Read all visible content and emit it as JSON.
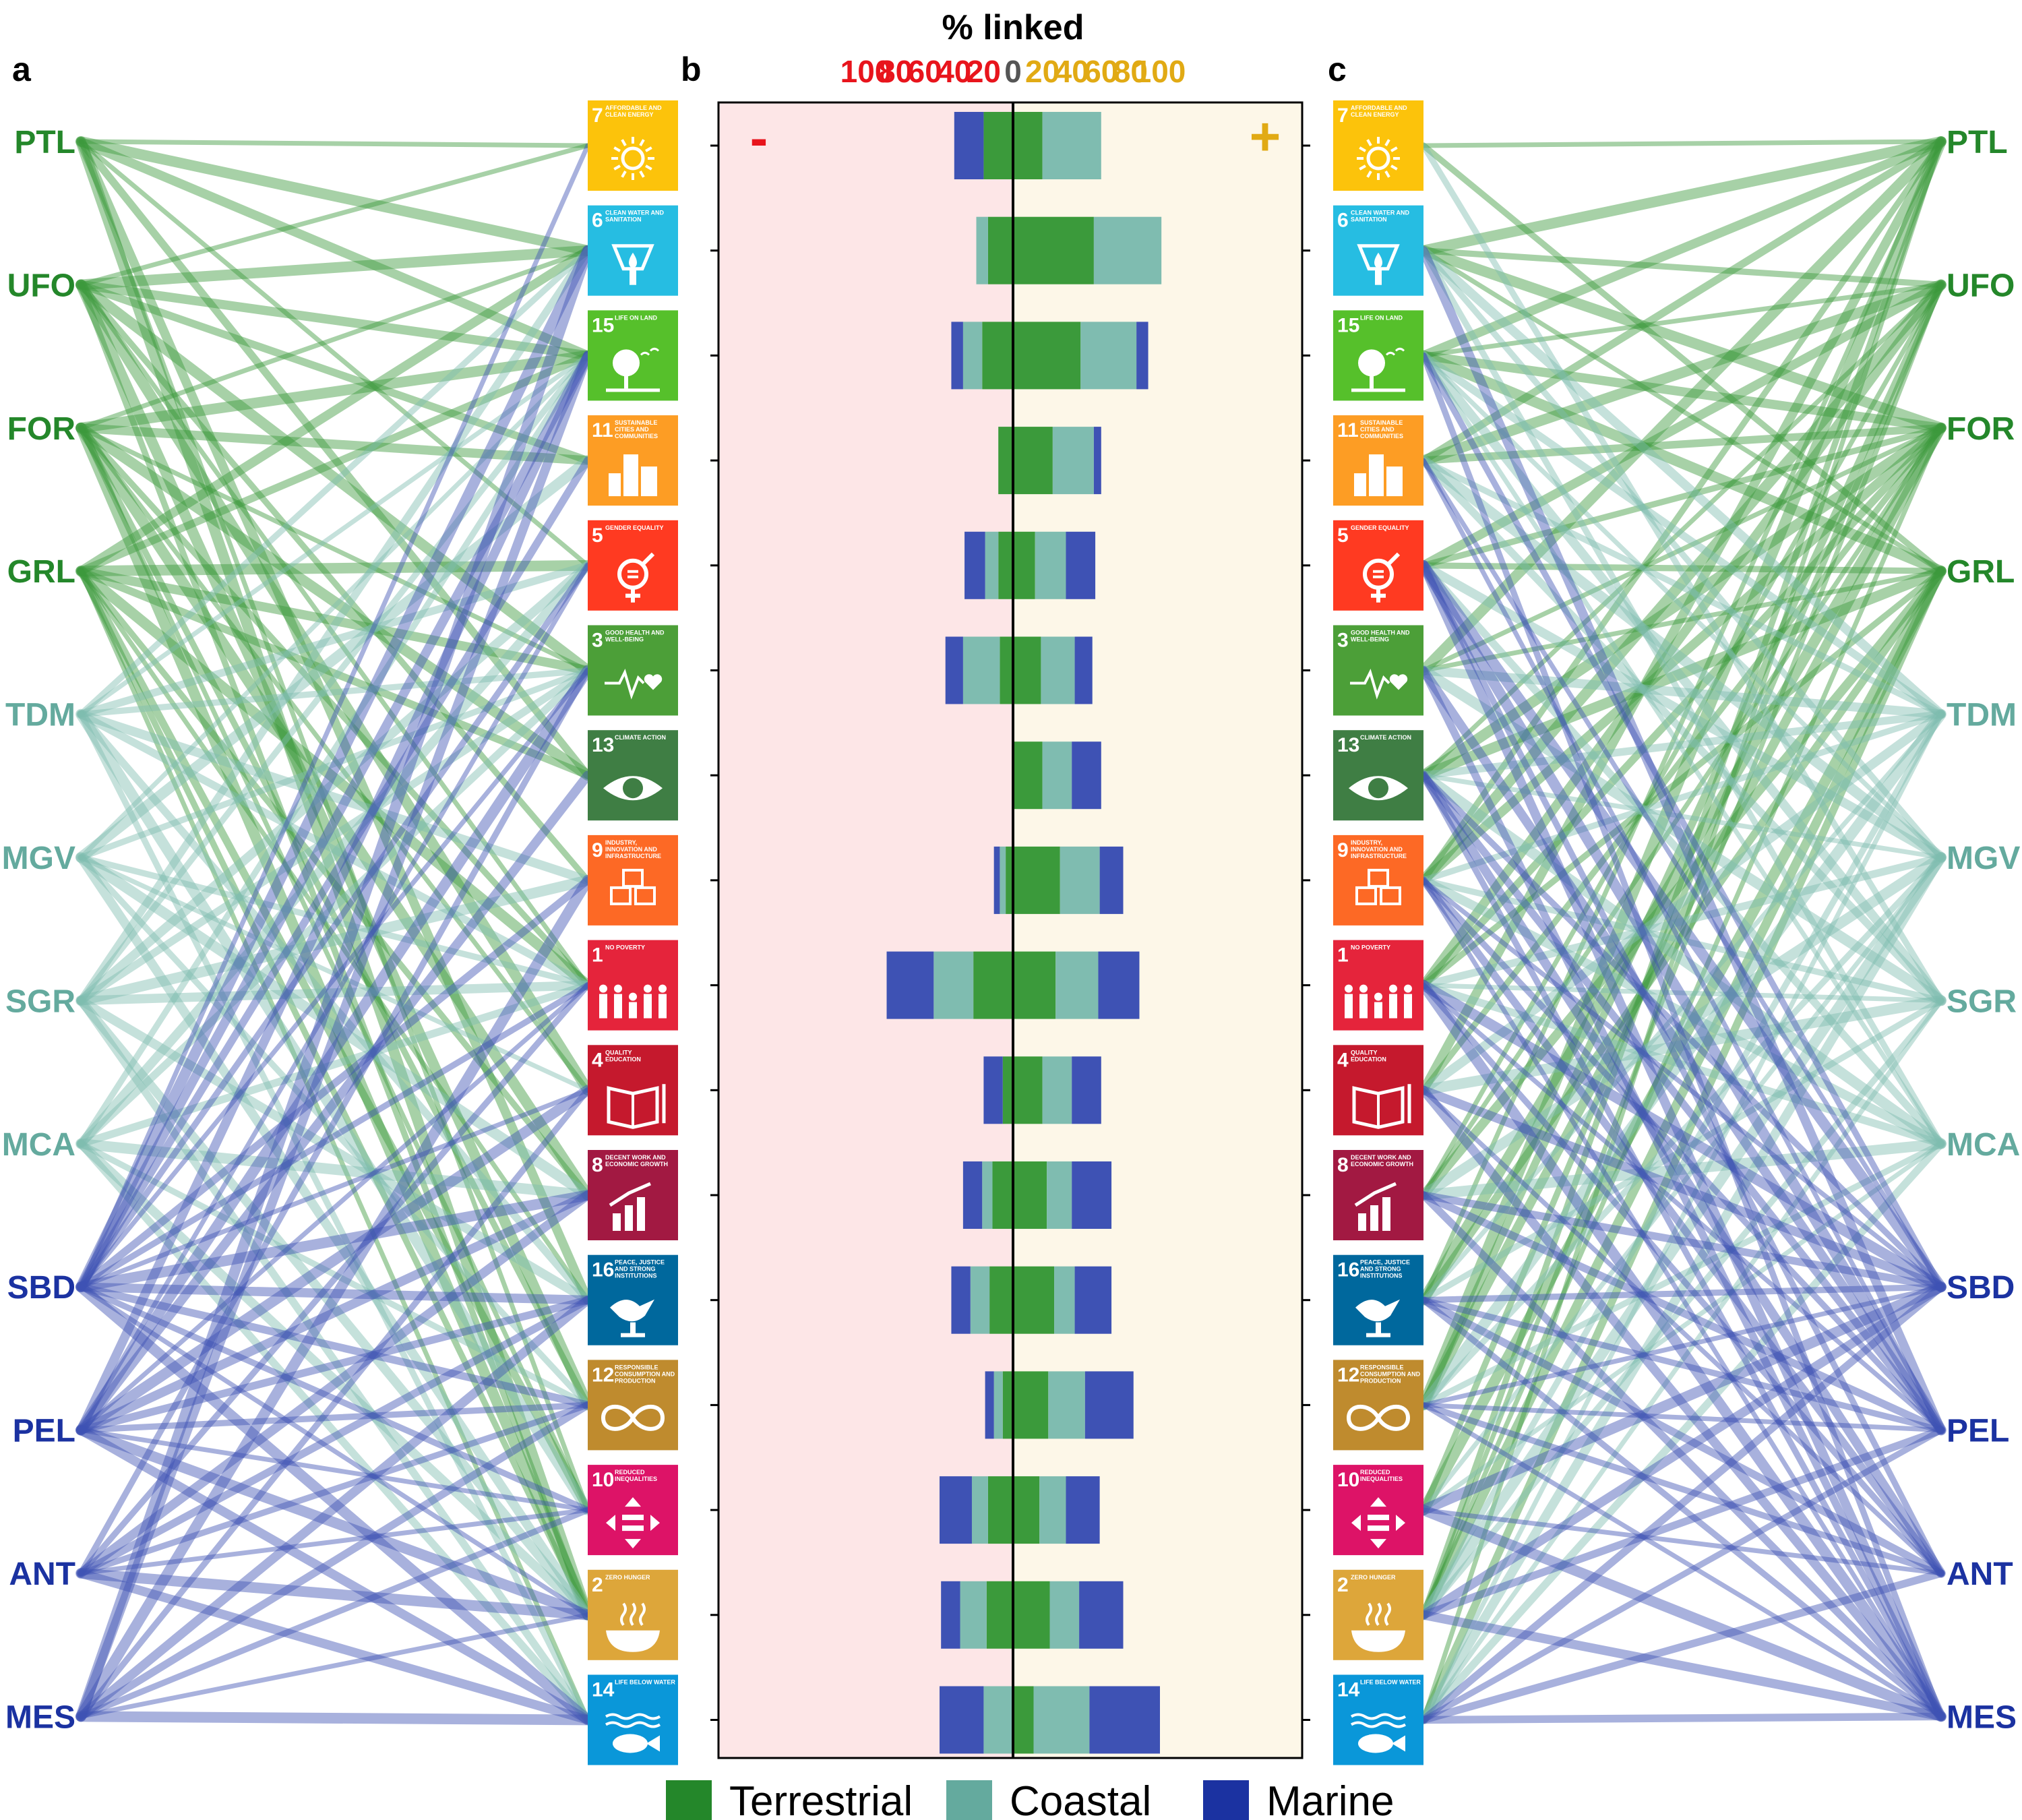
{
  "panel_labels": {
    "a": "a",
    "b": "b",
    "c": "c"
  },
  "sign_labels": {
    "negative": "-",
    "positive": "+"
  },
  "colors": {
    "terrestrial": "#3b9a3b",
    "coastal": "#7fbcb0",
    "marine": "#3e52b4",
    "terrestrial_legend": "#24872a",
    "coastal_legend": "#64aa9e",
    "marine_legend": "#1b32a1",
    "neg_axis": "#e8141c",
    "pos_axis": "#e1aa14",
    "neg_bg": "#fde6e7",
    "pos_bg": "#fdf7e8"
  },
  "ecosystems": [
    {
      "code": "PTL",
      "realm": "terrestrial"
    },
    {
      "code": "UFO",
      "realm": "terrestrial"
    },
    {
      "code": "FOR",
      "realm": "terrestrial"
    },
    {
      "code": "GRL",
      "realm": "terrestrial"
    },
    {
      "code": "TDM",
      "realm": "coastal"
    },
    {
      "code": "MGV",
      "realm": "coastal"
    },
    {
      "code": "SGR",
      "realm": "coastal"
    },
    {
      "code": "MCA",
      "realm": "coastal"
    },
    {
      "code": "SBD",
      "realm": "marine"
    },
    {
      "code": "PEL",
      "realm": "marine"
    },
    {
      "code": "ANT",
      "realm": "marine"
    },
    {
      "code": "MES",
      "realm": "marine"
    }
  ],
  "sdgs": [
    {
      "num": "7",
      "title": "AFFORDABLE AND CLEAN ENERGY",
      "color": "#fcc30b",
      "icon": "sun-plug-icon"
    },
    {
      "num": "6",
      "title": "CLEAN WATER AND SANITATION",
      "color": "#26bde2",
      "icon": "water-drop-icon"
    },
    {
      "num": "15",
      "title": "LIFE ON LAND",
      "color": "#56c02b",
      "icon": "tree-icon"
    },
    {
      "num": "11",
      "title": "SUSTAINABLE CITIES AND COMMUNITIES",
      "color": "#fd9d24",
      "icon": "city-icon"
    },
    {
      "num": "5",
      "title": "GENDER EQUALITY",
      "color": "#ff3a21",
      "icon": "gender-icon"
    },
    {
      "num": "3",
      "title": "GOOD HEALTH AND WELL-BEING",
      "color": "#4c9f38",
      "icon": "heartbeat-icon"
    },
    {
      "num": "13",
      "title": "CLIMATE ACTION",
      "color": "#3f7e44",
      "icon": "eye-globe-icon"
    },
    {
      "num": "9",
      "title": "INDUSTRY, INNOVATION AND INFRASTRUCTURE",
      "color": "#fd6925",
      "icon": "cubes-icon"
    },
    {
      "num": "1",
      "title": "NO POVERTY",
      "color": "#e5243b",
      "icon": "family-icon"
    },
    {
      "num": "4",
      "title": "QUALITY EDUCATION",
      "color": "#c5192d",
      "icon": "book-icon"
    },
    {
      "num": "8",
      "title": "DECENT WORK AND ECONOMIC GROWTH",
      "color": "#a21942",
      "icon": "growth-chart-icon"
    },
    {
      "num": "16",
      "title": "PEACE, JUSTICE AND STRONG INSTITUTIONS",
      "color": "#00689d",
      "icon": "dove-icon"
    },
    {
      "num": "12",
      "title": "RESPONSIBLE CONSUMPTION AND PRODUCTION",
      "color": "#bf8b2e",
      "icon": "infinity-icon"
    },
    {
      "num": "10",
      "title": "REDUCED INEQUALITIES",
      "color": "#dd1367",
      "icon": "equality-icon"
    },
    {
      "num": "2",
      "title": "ZERO HUNGER",
      "color": "#dda63a",
      "icon": "bowl-icon"
    },
    {
      "num": "14",
      "title": "LIFE BELOW WATER",
      "color": "#0a97d9",
      "icon": "fish-icon"
    }
  ],
  "chart_data": {
    "type": "bar",
    "orientation": "horizontal-diverging-stacked",
    "title": "% linked",
    "xlim": [
      -100,
      100
    ],
    "neg_tick_labels": [
      "100",
      "80",
      "60",
      "40",
      "20"
    ],
    "zero_label": "0",
    "pos_tick_labels": [
      "20",
      "40",
      "60",
      "80",
      "100"
    ],
    "categories": [
      "7",
      "6",
      "15",
      "11",
      "5",
      "3",
      "13",
      "9",
      "1",
      "4",
      "8",
      "16",
      "12",
      "10",
      "2",
      "14"
    ],
    "series_order": [
      "Terrestrial",
      "Coastal",
      "Marine"
    ],
    "negative": [
      {
        "name": "Terrestrial",
        "values": [
          20,
          17,
          21,
          10,
          10,
          9,
          0,
          5,
          27,
          7,
          14,
          16,
          7,
          17,
          18,
          0
        ]
      },
      {
        "name": "Coastal",
        "values": [
          0,
          8,
          13,
          0,
          9,
          25,
          0,
          4,
          27,
          0,
          7,
          13,
          6,
          11,
          18,
          20
        ]
      },
      {
        "name": "Marine",
        "values": [
          20,
          0,
          8,
          0,
          14,
          12,
          0,
          4,
          32,
          13,
          13,
          13,
          6,
          22,
          13,
          30
        ]
      }
    ],
    "positive": [
      {
        "name": "Terrestrial",
        "values": [
          20,
          55,
          46,
          27,
          15,
          19,
          20,
          32,
          29,
          20,
          23,
          28,
          24,
          18,
          25,
          14
        ]
      },
      {
        "name": "Coastal",
        "values": [
          40,
          46,
          38,
          28,
          21,
          23,
          20,
          27,
          29,
          20,
          17,
          14,
          25,
          18,
          20,
          38
        ]
      },
      {
        "name": "Marine",
        "values": [
          0,
          0,
          8,
          5,
          20,
          12,
          20,
          16,
          28,
          20,
          27,
          25,
          33,
          23,
          30,
          48
        ]
      }
    ],
    "legend": {
      "position": "bottom",
      "entries": [
        "Terrestrial",
        "Coastal",
        "Marine"
      ]
    }
  },
  "links_negative": [
    [
      0,
      0
    ],
    [
      0,
      1
    ],
    [
      0,
      2
    ],
    [
      0,
      4
    ],
    [
      0,
      6
    ],
    [
      0,
      11
    ],
    [
      0,
      13
    ],
    [
      0,
      14
    ],
    [
      1,
      0
    ],
    [
      1,
      1
    ],
    [
      1,
      2
    ],
    [
      1,
      3
    ],
    [
      1,
      5
    ],
    [
      1,
      7
    ],
    [
      1,
      8
    ],
    [
      1,
      9
    ],
    [
      1,
      12
    ],
    [
      1,
      14
    ],
    [
      2,
      1
    ],
    [
      2,
      2
    ],
    [
      2,
      3
    ],
    [
      2,
      5
    ],
    [
      2,
      6
    ],
    [
      2,
      8
    ],
    [
      2,
      9
    ],
    [
      2,
      10
    ],
    [
      2,
      12
    ],
    [
      2,
      13
    ],
    [
      2,
      14
    ],
    [
      3,
      1
    ],
    [
      3,
      2
    ],
    [
      3,
      4
    ],
    [
      3,
      5
    ],
    [
      3,
      6
    ],
    [
      3,
      8
    ],
    [
      3,
      10
    ],
    [
      3,
      11
    ],
    [
      3,
      13
    ],
    [
      3,
      14
    ],
    [
      3,
      15
    ],
    [
      4,
      1
    ],
    [
      4,
      2
    ],
    [
      4,
      4
    ],
    [
      4,
      5
    ],
    [
      4,
      7
    ],
    [
      4,
      8
    ],
    [
      4,
      11
    ],
    [
      4,
      13
    ],
    [
      4,
      15
    ],
    [
      5,
      2
    ],
    [
      5,
      3
    ],
    [
      5,
      5
    ],
    [
      5,
      8
    ],
    [
      5,
      9
    ],
    [
      5,
      10
    ],
    [
      5,
      12
    ],
    [
      5,
      14
    ],
    [
      6,
      1
    ],
    [
      6,
      2
    ],
    [
      6,
      4
    ],
    [
      6,
      5
    ],
    [
      6,
      7
    ],
    [
      6,
      8
    ],
    [
      6,
      11
    ],
    [
      6,
      14
    ],
    [
      6,
      15
    ],
    [
      7,
      2
    ],
    [
      7,
      4
    ],
    [
      7,
      5
    ],
    [
      7,
      8
    ],
    [
      7,
      10
    ],
    [
      7,
      12
    ],
    [
      7,
      14
    ],
    [
      7,
      15
    ],
    [
      8,
      0
    ],
    [
      8,
      1
    ],
    [
      8,
      2
    ],
    [
      8,
      3
    ],
    [
      8,
      4
    ],
    [
      8,
      5
    ],
    [
      8,
      7
    ],
    [
      8,
      8
    ],
    [
      8,
      9
    ],
    [
      8,
      10
    ],
    [
      8,
      11
    ],
    [
      8,
      12
    ],
    [
      8,
      13
    ],
    [
      8,
      14
    ],
    [
      8,
      15
    ],
    [
      9,
      2
    ],
    [
      9,
      4
    ],
    [
      9,
      5
    ],
    [
      9,
      6
    ],
    [
      9,
      8
    ],
    [
      9,
      9
    ],
    [
      9,
      10
    ],
    [
      9,
      11
    ],
    [
      9,
      12
    ],
    [
      9,
      13
    ],
    [
      9,
      14
    ],
    [
      9,
      15
    ],
    [
      10,
      5
    ],
    [
      10,
      8
    ],
    [
      10,
      10
    ],
    [
      10,
      11
    ],
    [
      10,
      12
    ],
    [
      10,
      13
    ],
    [
      10,
      14
    ],
    [
      10,
      15
    ],
    [
      11,
      1
    ],
    [
      11,
      2
    ],
    [
      11,
      7
    ],
    [
      11,
      9
    ],
    [
      11,
      11
    ],
    [
      11,
      12
    ],
    [
      11,
      13
    ],
    [
      11,
      14
    ],
    [
      11,
      15
    ]
  ],
  "links_positive": [
    [
      0,
      0
    ],
    [
      0,
      1
    ],
    [
      0,
      2
    ],
    [
      0,
      3
    ],
    [
      0,
      5
    ],
    [
      0,
      7
    ],
    [
      0,
      9
    ],
    [
      0,
      11
    ],
    [
      0,
      12
    ],
    [
      0,
      14
    ],
    [
      0,
      15
    ],
    [
      1,
      1
    ],
    [
      1,
      2
    ],
    [
      1,
      3
    ],
    [
      1,
      4
    ],
    [
      1,
      6
    ],
    [
      1,
      7
    ],
    [
      1,
      8
    ],
    [
      1,
      10
    ],
    [
      1,
      12
    ],
    [
      1,
      13
    ],
    [
      1,
      14
    ],
    [
      2,
      1
    ],
    [
      2,
      2
    ],
    [
      2,
      3
    ],
    [
      2,
      4
    ],
    [
      2,
      5
    ],
    [
      2,
      6
    ],
    [
      2,
      7
    ],
    [
      2,
      8
    ],
    [
      2,
      9
    ],
    [
      2,
      10
    ],
    [
      2,
      11
    ],
    [
      2,
      12
    ],
    [
      2,
      14
    ],
    [
      3,
      0
    ],
    [
      3,
      1
    ],
    [
      3,
      2
    ],
    [
      3,
      4
    ],
    [
      3,
      5
    ],
    [
      3,
      6
    ],
    [
      3,
      8
    ],
    [
      3,
      10
    ],
    [
      3,
      11
    ],
    [
      3,
      13
    ],
    [
      3,
      14
    ],
    [
      3,
      15
    ],
    [
      4,
      1
    ],
    [
      4,
      2
    ],
    [
      4,
      3
    ],
    [
      4,
      5
    ],
    [
      4,
      6
    ],
    [
      4,
      7
    ],
    [
      4,
      9
    ],
    [
      4,
      11
    ],
    [
      4,
      12
    ],
    [
      4,
      14
    ],
    [
      4,
      15
    ],
    [
      5,
      1
    ],
    [
      5,
      2
    ],
    [
      5,
      3
    ],
    [
      5,
      4
    ],
    [
      5,
      6
    ],
    [
      5,
      8
    ],
    [
      5,
      10
    ],
    [
      5,
      12
    ],
    [
      5,
      13
    ],
    [
      5,
      14
    ],
    [
      5,
      15
    ],
    [
      6,
      0
    ],
    [
      6,
      2
    ],
    [
      6,
      3
    ],
    [
      6,
      5
    ],
    [
      6,
      7
    ],
    [
      6,
      8
    ],
    [
      6,
      9
    ],
    [
      6,
      11
    ],
    [
      6,
      14
    ],
    [
      6,
      15
    ],
    [
      7,
      1
    ],
    [
      7,
      2
    ],
    [
      7,
      4
    ],
    [
      7,
      6
    ],
    [
      7,
      7
    ],
    [
      7,
      8
    ],
    [
      7,
      10
    ],
    [
      7,
      12
    ],
    [
      7,
      13
    ],
    [
      7,
      15
    ],
    [
      8,
      2
    ],
    [
      8,
      3
    ],
    [
      8,
      4
    ],
    [
      8,
      6
    ],
    [
      8,
      7
    ],
    [
      8,
      8
    ],
    [
      8,
      9
    ],
    [
      8,
      10
    ],
    [
      8,
      11
    ],
    [
      8,
      12
    ],
    [
      8,
      13
    ],
    [
      8,
      14
    ],
    [
      8,
      15
    ],
    [
      9,
      1
    ],
    [
      9,
      3
    ],
    [
      9,
      4
    ],
    [
      9,
      5
    ],
    [
      9,
      6
    ],
    [
      9,
      7
    ],
    [
      9,
      8
    ],
    [
      9,
      10
    ],
    [
      9,
      11
    ],
    [
      9,
      12
    ],
    [
      9,
      14
    ],
    [
      9,
      15
    ],
    [
      10,
      4
    ],
    [
      10,
      6
    ],
    [
      10,
      7
    ],
    [
      10,
      8
    ],
    [
      10,
      9
    ],
    [
      10,
      11
    ],
    [
      10,
      12
    ],
    [
      10,
      13
    ],
    [
      10,
      15
    ],
    [
      11,
      2
    ],
    [
      11,
      4
    ],
    [
      11,
      5
    ],
    [
      11,
      6
    ],
    [
      11,
      7
    ],
    [
      11,
      8
    ],
    [
      11,
      9
    ],
    [
      11,
      10
    ],
    [
      11,
      11
    ],
    [
      11,
      12
    ],
    [
      11,
      13
    ],
    [
      11,
      14
    ],
    [
      11,
      15
    ]
  ]
}
